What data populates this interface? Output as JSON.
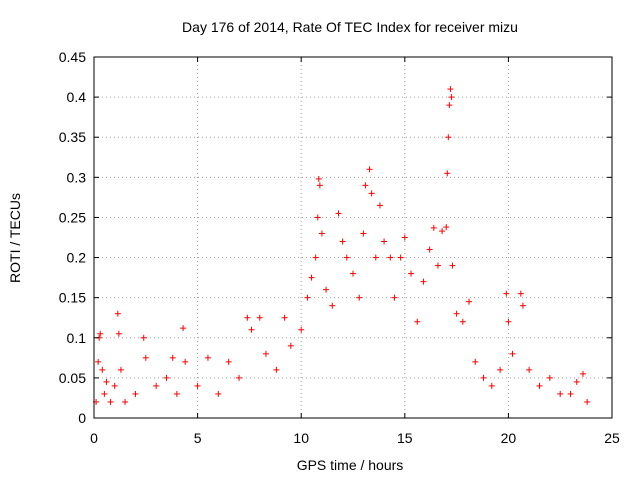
{
  "chart_data": {
    "type": "scatter",
    "title": "Day 176 of 2014, Rate Of TEC Index for receiver mizu",
    "xlabel": "GPS time / hours",
    "ylabel": "ROTI / TECUs",
    "xlim": [
      0,
      25
    ],
    "ylim": [
      0,
      0.45
    ],
    "x_ticks": [
      0,
      5,
      10,
      15,
      20,
      25
    ],
    "y_ticks": [
      0,
      0.05,
      0.1,
      0.15,
      0.2,
      0.25,
      0.3,
      0.35,
      0.4,
      0.45
    ],
    "x_tick_labels": [
      "0",
      "5",
      "10",
      "15",
      "20",
      "25"
    ],
    "y_tick_labels": [
      "0",
      "0.05",
      "0.1",
      "0.15",
      "0.2",
      "0.25",
      "0.3",
      "0.35",
      "0.4",
      "0.45"
    ],
    "grid": true,
    "marker": "+",
    "marker_color": "#ff0000",
    "series": [
      {
        "name": "ROTI",
        "points": [
          [
            0.1,
            0.02
          ],
          [
            0.2,
            0.07
          ],
          [
            0.25,
            0.1
          ],
          [
            0.3,
            0.105
          ],
          [
            0.4,
            0.06
          ],
          [
            0.5,
            0.03
          ],
          [
            0.6,
            0.045
          ],
          [
            0.8,
            0.02
          ],
          [
            1.0,
            0.04
          ],
          [
            1.15,
            0.13
          ],
          [
            1.2,
            0.105
          ],
          [
            1.3,
            0.06
          ],
          [
            1.5,
            0.02
          ],
          [
            2.0,
            0.03
          ],
          [
            2.4,
            0.1
          ],
          [
            2.5,
            0.075
          ],
          [
            3.0,
            0.04
          ],
          [
            3.5,
            0.05
          ],
          [
            3.8,
            0.075
          ],
          [
            4.0,
            0.03
          ],
          [
            4.3,
            0.112
          ],
          [
            4.4,
            0.07
          ],
          [
            5.0,
            0.04
          ],
          [
            5.5,
            0.075
          ],
          [
            6.0,
            0.03
          ],
          [
            6.5,
            0.07
          ],
          [
            7.0,
            0.05
          ],
          [
            7.4,
            0.125
          ],
          [
            7.6,
            0.11
          ],
          [
            8.0,
            0.125
          ],
          [
            8.3,
            0.08
          ],
          [
            8.8,
            0.06
          ],
          [
            9.2,
            0.125
          ],
          [
            9.5,
            0.09
          ],
          [
            10.0,
            0.11
          ],
          [
            10.3,
            0.15
          ],
          [
            10.5,
            0.175
          ],
          [
            10.7,
            0.2
          ],
          [
            10.8,
            0.25
          ],
          [
            10.85,
            0.298
          ],
          [
            10.9,
            0.29
          ],
          [
            11.0,
            0.23
          ],
          [
            11.2,
            0.16
          ],
          [
            11.5,
            0.14
          ],
          [
            11.8,
            0.255
          ],
          [
            12.0,
            0.22
          ],
          [
            12.2,
            0.2
          ],
          [
            12.5,
            0.18
          ],
          [
            12.8,
            0.15
          ],
          [
            13.0,
            0.23
          ],
          [
            13.1,
            0.29
          ],
          [
            13.3,
            0.31
          ],
          [
            13.4,
            0.28
          ],
          [
            13.6,
            0.2
          ],
          [
            13.8,
            0.265
          ],
          [
            14.0,
            0.22
          ],
          [
            14.3,
            0.2
          ],
          [
            14.5,
            0.15
          ],
          [
            14.8,
            0.2
          ],
          [
            15.0,
            0.225
          ],
          [
            15.3,
            0.18
          ],
          [
            15.6,
            0.12
          ],
          [
            15.9,
            0.17
          ],
          [
            16.2,
            0.21
          ],
          [
            16.4,
            0.237
          ],
          [
            16.6,
            0.19
          ],
          [
            16.8,
            0.233
          ],
          [
            17.0,
            0.238
          ],
          [
            17.05,
            0.305
          ],
          [
            17.1,
            0.35
          ],
          [
            17.15,
            0.39
          ],
          [
            17.2,
            0.41
          ],
          [
            17.25,
            0.4
          ],
          [
            17.3,
            0.19
          ],
          [
            17.5,
            0.13
          ],
          [
            17.8,
            0.12
          ],
          [
            18.1,
            0.145
          ],
          [
            18.4,
            0.07
          ],
          [
            18.8,
            0.05
          ],
          [
            19.2,
            0.04
          ],
          [
            19.6,
            0.06
          ],
          [
            19.9,
            0.155
          ],
          [
            20.0,
            0.12
          ],
          [
            20.2,
            0.08
          ],
          [
            20.6,
            0.155
          ],
          [
            20.7,
            0.14
          ],
          [
            21.0,
            0.06
          ],
          [
            21.5,
            0.04
          ],
          [
            22.0,
            0.05
          ],
          [
            22.5,
            0.03
          ],
          [
            23.0,
            0.03
          ],
          [
            23.3,
            0.045
          ],
          [
            23.6,
            0.055
          ],
          [
            23.8,
            0.02
          ]
        ]
      }
    ]
  }
}
